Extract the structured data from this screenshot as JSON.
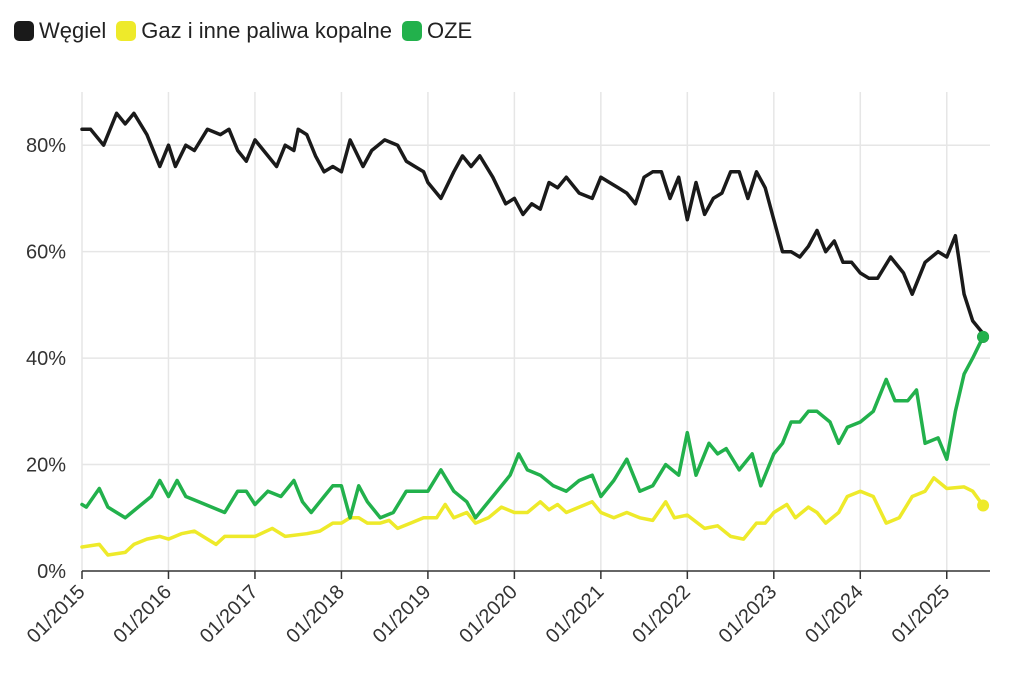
{
  "colors": {
    "coal": "#1a1a1a",
    "gas": "#eeea2a",
    "res": "#22b14c",
    "grid": "#e6e6e6",
    "axis": "#333333"
  },
  "legend": {
    "items": [
      {
        "label": "Węgiel",
        "color": "#1a1a1a"
      },
      {
        "label": "Gaz i inne paliwa kopalne",
        "color": "#eeea2a"
      },
      {
        "label": "OZE",
        "color": "#22b14c"
      }
    ]
  },
  "chart_data": {
    "type": "line",
    "title": "",
    "xlabel": "",
    "ylabel": "",
    "x_tick_labels": [
      "01/2015",
      "01/2016",
      "01/2017",
      "01/2018",
      "01/2019",
      "01/2020",
      "01/2021",
      "01/2022",
      "01/2023",
      "01/2024",
      "01/2025"
    ],
    "y_tick_labels": [
      "0%",
      "20%",
      "40%",
      "60%",
      "80%"
    ],
    "y_ticks": [
      0,
      20,
      40,
      60,
      80
    ],
    "ylim": [
      0,
      90
    ],
    "x_start": 2015.0,
    "x_end": 2025.5,
    "series": [
      {
        "name": "Węgiel",
        "color": "#1a1a1a",
        "points": [
          [
            2015.0,
            83
          ],
          [
            2015.1,
            83
          ],
          [
            2015.25,
            80
          ],
          [
            2015.4,
            86
          ],
          [
            2015.5,
            84
          ],
          [
            2015.6,
            86
          ],
          [
            2015.75,
            82
          ],
          [
            2015.9,
            76
          ],
          [
            2016.0,
            80
          ],
          [
            2016.08,
            76
          ],
          [
            2016.2,
            80
          ],
          [
            2016.3,
            79
          ],
          [
            2016.45,
            83
          ],
          [
            2016.6,
            82
          ],
          [
            2016.7,
            83
          ],
          [
            2016.8,
            79
          ],
          [
            2016.9,
            77
          ],
          [
            2017.0,
            81
          ],
          [
            2017.1,
            79
          ],
          [
            2017.25,
            76
          ],
          [
            2017.35,
            80
          ],
          [
            2017.45,
            79
          ],
          [
            2017.5,
            83
          ],
          [
            2017.6,
            82
          ],
          [
            2017.7,
            78
          ],
          [
            2017.8,
            75
          ],
          [
            2017.9,
            76
          ],
          [
            2018.0,
            75
          ],
          [
            2018.1,
            81
          ],
          [
            2018.25,
            76
          ],
          [
            2018.35,
            79
          ],
          [
            2018.5,
            81
          ],
          [
            2018.65,
            80
          ],
          [
            2018.75,
            77
          ],
          [
            2018.85,
            76
          ],
          [
            2018.95,
            75
          ],
          [
            2019.0,
            73
          ],
          [
            2019.15,
            70
          ],
          [
            2019.3,
            75
          ],
          [
            2019.4,
            78
          ],
          [
            2019.5,
            76
          ],
          [
            2019.6,
            78
          ],
          [
            2019.75,
            74
          ],
          [
            2019.9,
            69
          ],
          [
            2020.0,
            70
          ],
          [
            2020.1,
            67
          ],
          [
            2020.2,
            69
          ],
          [
            2020.3,
            68
          ],
          [
            2020.4,
            73
          ],
          [
            2020.5,
            72
          ],
          [
            2020.6,
            74
          ],
          [
            2020.75,
            71
          ],
          [
            2020.9,
            70
          ],
          [
            2021.0,
            74
          ],
          [
            2021.1,
            73
          ],
          [
            2021.2,
            72
          ],
          [
            2021.3,
            71
          ],
          [
            2021.4,
            69
          ],
          [
            2021.5,
            74
          ],
          [
            2021.6,
            75
          ],
          [
            2021.7,
            75
          ],
          [
            2021.8,
            70
          ],
          [
            2021.9,
            74
          ],
          [
            2022.0,
            66
          ],
          [
            2022.1,
            73
          ],
          [
            2022.2,
            67
          ],
          [
            2022.3,
            70
          ],
          [
            2022.4,
            71
          ],
          [
            2022.5,
            75
          ],
          [
            2022.6,
            75
          ],
          [
            2022.7,
            70
          ],
          [
            2022.8,
            75
          ],
          [
            2022.9,
            72
          ],
          [
            2023.0,
            66
          ],
          [
            2023.1,
            60
          ],
          [
            2023.2,
            60
          ],
          [
            2023.3,
            59
          ],
          [
            2023.4,
            61
          ],
          [
            2023.5,
            64
          ],
          [
            2023.6,
            60
          ],
          [
            2023.7,
            62
          ],
          [
            2023.8,
            58
          ],
          [
            2023.9,
            58
          ],
          [
            2024.0,
            56
          ],
          [
            2024.1,
            55
          ],
          [
            2024.2,
            55
          ],
          [
            2024.35,
            59
          ],
          [
            2024.5,
            56
          ],
          [
            2024.6,
            52
          ],
          [
            2024.75,
            58
          ],
          [
            2024.9,
            60
          ],
          [
            2025.0,
            59
          ],
          [
            2025.1,
            63
          ],
          [
            2025.2,
            52
          ],
          [
            2025.3,
            47
          ],
          [
            2025.4,
            45
          ],
          [
            2025.42,
            44
          ]
        ]
      },
      {
        "name": "Gaz i inne paliwa kopalne",
        "color": "#eeea2a",
        "points": [
          [
            2015.0,
            4.5
          ],
          [
            2015.2,
            5
          ],
          [
            2015.3,
            3
          ],
          [
            2015.5,
            3.5
          ],
          [
            2015.6,
            5
          ],
          [
            2015.75,
            6
          ],
          [
            2015.9,
            6.5
          ],
          [
            2016.0,
            6
          ],
          [
            2016.15,
            7
          ],
          [
            2016.3,
            7.5
          ],
          [
            2016.45,
            6
          ],
          [
            2016.55,
            5
          ],
          [
            2016.65,
            6.5
          ],
          [
            2016.85,
            6.5
          ],
          [
            2017.0,
            6.5
          ],
          [
            2017.2,
            8
          ],
          [
            2017.35,
            6.5
          ],
          [
            2017.6,
            7
          ],
          [
            2017.75,
            7.5
          ],
          [
            2017.9,
            9
          ],
          [
            2018.0,
            9
          ],
          [
            2018.1,
            10
          ],
          [
            2018.2,
            10
          ],
          [
            2018.3,
            9
          ],
          [
            2018.45,
            9
          ],
          [
            2018.55,
            9.5
          ],
          [
            2018.65,
            8
          ],
          [
            2018.8,
            9
          ],
          [
            2018.95,
            10
          ],
          [
            2019.1,
            10
          ],
          [
            2019.2,
            12.5
          ],
          [
            2019.3,
            10
          ],
          [
            2019.45,
            11
          ],
          [
            2019.55,
            9
          ],
          [
            2019.7,
            10
          ],
          [
            2019.85,
            12
          ],
          [
            2020.0,
            11
          ],
          [
            2020.15,
            11
          ],
          [
            2020.3,
            13
          ],
          [
            2020.4,
            11.5
          ],
          [
            2020.5,
            12.5
          ],
          [
            2020.6,
            11
          ],
          [
            2020.75,
            12
          ],
          [
            2020.9,
            13
          ],
          [
            2021.0,
            11
          ],
          [
            2021.15,
            10
          ],
          [
            2021.3,
            11
          ],
          [
            2021.45,
            10
          ],
          [
            2021.6,
            9.5
          ],
          [
            2021.75,
            13
          ],
          [
            2021.85,
            10
          ],
          [
            2022.0,
            10.5
          ],
          [
            2022.2,
            8
          ],
          [
            2022.35,
            8.5
          ],
          [
            2022.5,
            6.5
          ],
          [
            2022.65,
            6
          ],
          [
            2022.8,
            9
          ],
          [
            2022.9,
            9
          ],
          [
            2023.0,
            11
          ],
          [
            2023.15,
            12.5
          ],
          [
            2023.25,
            10
          ],
          [
            2023.4,
            12
          ],
          [
            2023.5,
            11
          ],
          [
            2023.6,
            9
          ],
          [
            2023.75,
            11
          ],
          [
            2023.85,
            14
          ],
          [
            2024.0,
            15
          ],
          [
            2024.15,
            14
          ],
          [
            2024.3,
            9
          ],
          [
            2024.45,
            10
          ],
          [
            2024.6,
            14
          ],
          [
            2024.75,
            15
          ],
          [
            2024.85,
            17.5
          ],
          [
            2025.0,
            15.5
          ],
          [
            2025.2,
            15.8
          ],
          [
            2025.3,
            15
          ],
          [
            2025.42,
            12.3
          ]
        ]
      },
      {
        "name": "OZE",
        "color": "#22b14c",
        "points": [
          [
            2015.0,
            12.5
          ],
          [
            2015.05,
            12
          ],
          [
            2015.2,
            15.5
          ],
          [
            2015.3,
            12
          ],
          [
            2015.4,
            11
          ],
          [
            2015.5,
            10
          ],
          [
            2015.65,
            12
          ],
          [
            2015.8,
            14
          ],
          [
            2015.9,
            17
          ],
          [
            2016.0,
            14
          ],
          [
            2016.1,
            17
          ],
          [
            2016.2,
            14
          ],
          [
            2016.35,
            13
          ],
          [
            2016.5,
            12
          ],
          [
            2016.65,
            11
          ],
          [
            2016.8,
            15
          ],
          [
            2016.9,
            15
          ],
          [
            2017.0,
            12.5
          ],
          [
            2017.15,
            15
          ],
          [
            2017.3,
            14
          ],
          [
            2017.45,
            17
          ],
          [
            2017.55,
            13
          ],
          [
            2017.65,
            11
          ],
          [
            2017.8,
            14
          ],
          [
            2017.9,
            16
          ],
          [
            2018.0,
            16
          ],
          [
            2018.1,
            10
          ],
          [
            2018.2,
            16
          ],
          [
            2018.3,
            13
          ],
          [
            2018.45,
            10
          ],
          [
            2018.6,
            11
          ],
          [
            2018.75,
            15
          ],
          [
            2018.9,
            15
          ],
          [
            2019.0,
            15
          ],
          [
            2019.15,
            19
          ],
          [
            2019.3,
            15
          ],
          [
            2019.45,
            13
          ],
          [
            2019.55,
            10
          ],
          [
            2019.65,
            12
          ],
          [
            2019.8,
            15
          ],
          [
            2019.95,
            18
          ],
          [
            2020.05,
            22
          ],
          [
            2020.15,
            19
          ],
          [
            2020.3,
            18
          ],
          [
            2020.45,
            16
          ],
          [
            2020.6,
            15
          ],
          [
            2020.75,
            17
          ],
          [
            2020.9,
            18
          ],
          [
            2021.0,
            14
          ],
          [
            2021.15,
            17
          ],
          [
            2021.3,
            21
          ],
          [
            2021.45,
            15
          ],
          [
            2021.6,
            16
          ],
          [
            2021.75,
            20
          ],
          [
            2021.9,
            18
          ],
          [
            2022.0,
            26
          ],
          [
            2022.1,
            18
          ],
          [
            2022.25,
            24
          ],
          [
            2022.35,
            22
          ],
          [
            2022.45,
            23
          ],
          [
            2022.6,
            19
          ],
          [
            2022.75,
            22
          ],
          [
            2022.85,
            16
          ],
          [
            2023.0,
            22
          ],
          [
            2023.1,
            24
          ],
          [
            2023.2,
            28
          ],
          [
            2023.3,
            28
          ],
          [
            2023.4,
            30
          ],
          [
            2023.5,
            30
          ],
          [
            2023.65,
            28
          ],
          [
            2023.75,
            24
          ],
          [
            2023.85,
            27
          ],
          [
            2024.0,
            28
          ],
          [
            2024.15,
            30
          ],
          [
            2024.3,
            36
          ],
          [
            2024.4,
            32
          ],
          [
            2024.55,
            32
          ],
          [
            2024.65,
            34
          ],
          [
            2024.75,
            24
          ],
          [
            2024.9,
            25
          ],
          [
            2025.0,
            21
          ],
          [
            2025.1,
            30
          ],
          [
            2025.2,
            37
          ],
          [
            2025.3,
            40
          ],
          [
            2025.42,
            44
          ]
        ]
      }
    ]
  }
}
